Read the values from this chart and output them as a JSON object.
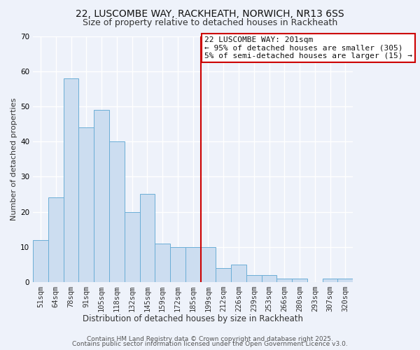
{
  "title1": "22, LUSCOMBE WAY, RACKHEATH, NORWICH, NR13 6SS",
  "title2": "Size of property relative to detached houses in Rackheath",
  "xlabel": "Distribution of detached houses by size in Rackheath",
  "ylabel": "Number of detached properties",
  "categories": [
    "51sqm",
    "64sqm",
    "78sqm",
    "91sqm",
    "105sqm",
    "118sqm",
    "132sqm",
    "145sqm",
    "159sqm",
    "172sqm",
    "185sqm",
    "199sqm",
    "212sqm",
    "226sqm",
    "239sqm",
    "253sqm",
    "266sqm",
    "280sqm",
    "293sqm",
    "307sqm",
    "320sqm"
  ],
  "values": [
    12,
    24,
    58,
    44,
    49,
    40,
    20,
    25,
    11,
    10,
    10,
    10,
    4,
    5,
    2,
    2,
    1,
    1,
    0,
    1,
    1
  ],
  "bar_color": "#ccddf0",
  "bar_edge_color": "#6baed6",
  "vline_after_index": 10,
  "vline_color": "#cc0000",
  "annotation_title": "22 LUSCOMBE WAY: 201sqm",
  "annotation_line1": "← 95% of detached houses are smaller (305)",
  "annotation_line2": "5% of semi-detached houses are larger (15) →",
  "annotation_box_color": "#ffffff",
  "annotation_box_edge": "#cc0000",
  "ylim": [
    0,
    70
  ],
  "yticks": [
    0,
    10,
    20,
    30,
    40,
    50,
    60,
    70
  ],
  "footer1": "Contains HM Land Registry data © Crown copyright and database right 2025.",
  "footer2": "Contains public sector information licensed under the Open Government Licence v3.0.",
  "background_color": "#eef2fa",
  "grid_color": "#ffffff",
  "title1_fontsize": 10,
  "title2_fontsize": 9,
  "xlabel_fontsize": 8.5,
  "ylabel_fontsize": 8,
  "tick_fontsize": 7.5,
  "footer_fontsize": 6.5,
  "annotation_fontsize": 8
}
